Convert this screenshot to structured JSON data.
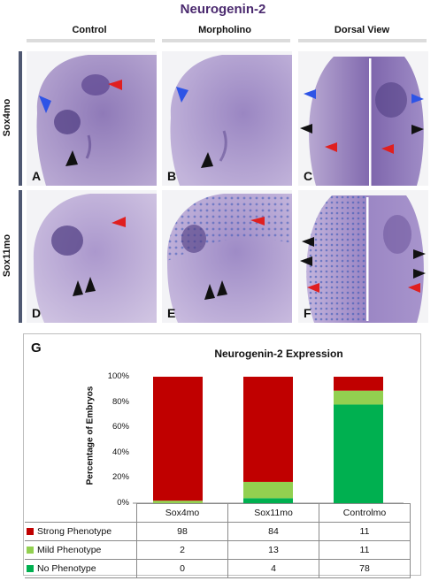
{
  "figure": {
    "title": "Neurogenin-2",
    "columns": [
      "Control",
      "Morpholino",
      "Dorsal View"
    ],
    "rows": [
      "Sox4mo",
      "Sox11mo"
    ],
    "panels": [
      {
        "letter": "A",
        "arrows": [
          "blue",
          "red",
          "black"
        ]
      },
      {
        "letter": "B",
        "arrows": [
          "blue",
          "black"
        ]
      },
      {
        "letter": "C",
        "arrows": [
          "blue",
          "blue",
          "black",
          "black",
          "red",
          "red"
        ]
      },
      {
        "letter": "D",
        "arrows": [
          "red",
          "black",
          "black"
        ]
      },
      {
        "letter": "E",
        "arrows": [
          "red",
          "black",
          "black"
        ]
      },
      {
        "letter": "F",
        "arrows": [
          "black",
          "black",
          "black",
          "black",
          "red",
          "red"
        ]
      }
    ],
    "panel_g_letter": "G"
  },
  "colors": {
    "title": "#4b2a6f",
    "strong": "#c00000",
    "mild": "#92d050",
    "none": "#00b050",
    "arrow_blue": "#2e54e6",
    "arrow_red": "#e01f1f",
    "arrow_black": "#111111"
  },
  "chart_data": {
    "type": "bar",
    "stacked": true,
    "title": "Neurogenin-2 Expression",
    "ylabel": "Percentage of Embryos",
    "xlabel": "",
    "ylim": [
      0,
      100
    ],
    "yticks": [
      "0%",
      "20%",
      "40%",
      "60%",
      "80%",
      "100%"
    ],
    "categories": [
      "Sox4mo",
      "Sox11mo",
      "Controlmo"
    ],
    "series": [
      {
        "name": "Strong Phenotype",
        "values": [
          98,
          84,
          11
        ],
        "color": "#c00000"
      },
      {
        "name": "Mild Phenotype",
        "values": [
          2,
          13,
          11
        ],
        "color": "#92d050"
      },
      {
        "name": "No Phenotype",
        "values": [
          0,
          4,
          78
        ],
        "color": "#00b050"
      }
    ],
    "legend": "table-below"
  }
}
